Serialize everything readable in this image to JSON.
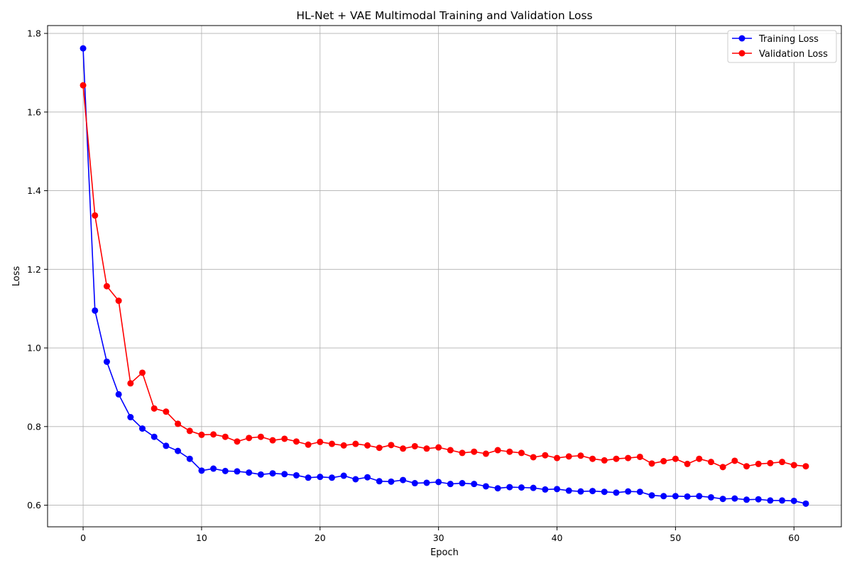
{
  "chart_data": {
    "type": "line",
    "title": "HL-Net + VAE Multimodal Training and Validation Loss",
    "xlabel": "Epoch",
    "ylabel": "Loss",
    "xlim": [
      -3,
      64
    ],
    "ylim": [
      0.545,
      1.82
    ],
    "xticks": [
      0,
      10,
      20,
      30,
      40,
      50,
      60
    ],
    "yticks": [
      0.6,
      0.8,
      1.0,
      1.2,
      1.4,
      1.6,
      1.8
    ],
    "xtick_labels": [
      "0",
      "10",
      "20",
      "30",
      "40",
      "50",
      "60"
    ],
    "ytick_labels": [
      "0.6",
      "0.8",
      "1.0",
      "1.2",
      "1.4",
      "1.6",
      "1.8"
    ],
    "grid": true,
    "legend_position": "top-right",
    "x": [
      0,
      1,
      2,
      3,
      4,
      5,
      6,
      7,
      8,
      9,
      10,
      11,
      12,
      13,
      14,
      15,
      16,
      17,
      18,
      19,
      20,
      21,
      22,
      23,
      24,
      25,
      26,
      27,
      28,
      29,
      30,
      31,
      32,
      33,
      34,
      35,
      36,
      37,
      38,
      39,
      40,
      41,
      42,
      43,
      44,
      45,
      46,
      47,
      48,
      49,
      50,
      51,
      52,
      53,
      54,
      55,
      56,
      57,
      58,
      59,
      60,
      61
    ],
    "series": [
      {
        "name": "Training Loss",
        "color": "#0000ff",
        "values": [
          1.762,
          1.095,
          0.965,
          0.882,
          0.824,
          0.795,
          0.774,
          0.751,
          0.738,
          0.718,
          0.688,
          0.693,
          0.687,
          0.686,
          0.683,
          0.678,
          0.681,
          0.679,
          0.676,
          0.67,
          0.672,
          0.67,
          0.675,
          0.666,
          0.671,
          0.661,
          0.66,
          0.664,
          0.656,
          0.657,
          0.659,
          0.654,
          0.656,
          0.654,
          0.648,
          0.643,
          0.646,
          0.645,
          0.644,
          0.64,
          0.641,
          0.637,
          0.635,
          0.636,
          0.634,
          0.632,
          0.635,
          0.634,
          0.625,
          0.623,
          0.623,
          0.622,
          0.623,
          0.62,
          0.616,
          0.617,
          0.614,
          0.615,
          0.612,
          0.612,
          0.611,
          0.604
        ]
      },
      {
        "name": "Validation Loss",
        "color": "#ff0000",
        "values": [
          1.668,
          1.337,
          1.157,
          1.12,
          0.91,
          0.937,
          0.846,
          0.838,
          0.807,
          0.789,
          0.779,
          0.78,
          0.774,
          0.762,
          0.771,
          0.774,
          0.765,
          0.769,
          0.762,
          0.754,
          0.761,
          0.756,
          0.752,
          0.756,
          0.752,
          0.746,
          0.753,
          0.744,
          0.75,
          0.744,
          0.747,
          0.74,
          0.733,
          0.736,
          0.731,
          0.74,
          0.736,
          0.733,
          0.722,
          0.727,
          0.72,
          0.724,
          0.726,
          0.718,
          0.714,
          0.718,
          0.72,
          0.723,
          0.706,
          0.712,
          0.718,
          0.705,
          0.718,
          0.71,
          0.697,
          0.713,
          0.699,
          0.705,
          0.707,
          0.71,
          0.702,
          0.699
        ]
      }
    ]
  }
}
